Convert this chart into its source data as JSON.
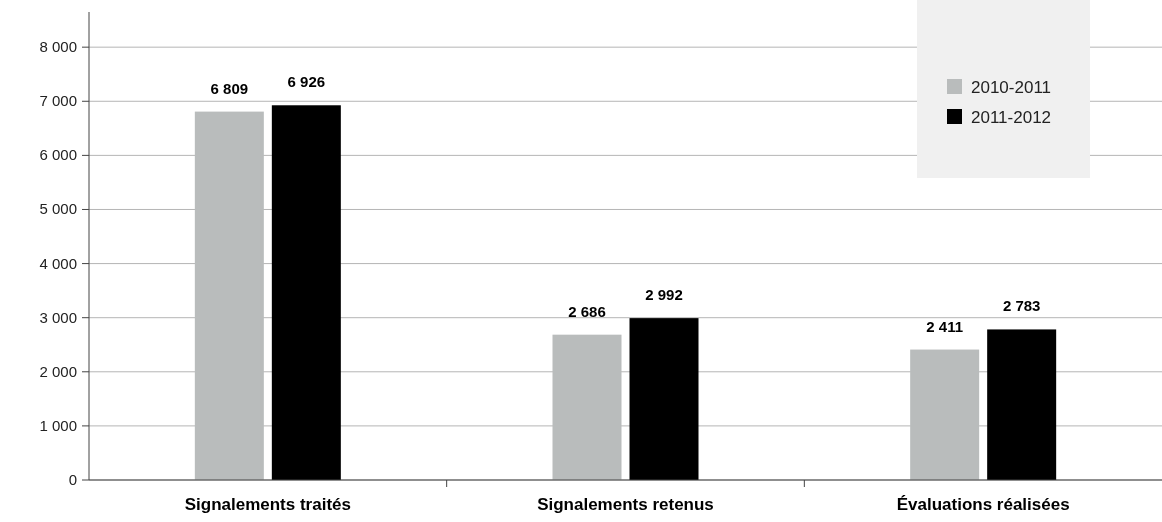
{
  "chart_data": {
    "type": "bar",
    "categories": [
      "Signalements traités",
      "Signalements retenus",
      "Évaluations réalisées"
    ],
    "series": [
      {
        "name": "2010-2011",
        "color": "#b9bcbc",
        "values": [
          6809,
          2686,
          2411
        ],
        "value_labels": [
          "6 809",
          "2 686",
          "2 411"
        ]
      },
      {
        "name": "2011-2012",
        "color": "#000000",
        "values": [
          6926,
          2992,
          2783
        ],
        "value_labels": [
          "6 926",
          "2 992",
          "2 783"
        ]
      }
    ],
    "ylim": [
      0,
      8650
    ],
    "yticks": [
      {
        "value": 0,
        "label": "0"
      },
      {
        "value": 1000,
        "label": "1 000"
      },
      {
        "value": 2000,
        "label": "2 000"
      },
      {
        "value": 3000,
        "label": "3 000"
      },
      {
        "value": 4000,
        "label": "4 000"
      },
      {
        "value": 5000,
        "label": "5 000"
      },
      {
        "value": 6000,
        "label": "6 000"
      },
      {
        "value": 7000,
        "label": "7 000"
      },
      {
        "value": 8000,
        "label": "8 000"
      }
    ],
    "grid": "y",
    "legend": "top right"
  }
}
